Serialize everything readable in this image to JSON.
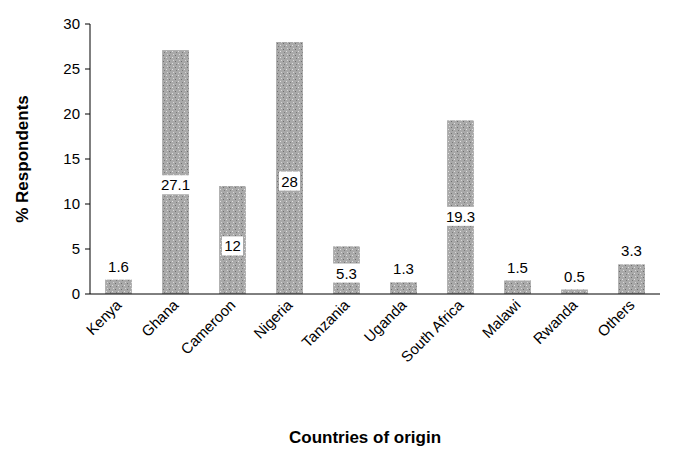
{
  "chart_data": {
    "type": "bar",
    "x_label": "Countries of origin",
    "y_label": "% Respondents",
    "categories": [
      "Kenya",
      "Ghana",
      "Cameroon",
      "Nigeria",
      "Tanzania",
      "Uganda",
      "South Africa",
      "Malawi",
      "Rwanda",
      "Others"
    ],
    "values": [
      1.6,
      27.1,
      12,
      28,
      5.3,
      1.3,
      19.3,
      1.5,
      0.5,
      3.3
    ],
    "color": "#a9a9a9",
    "ylim": [
      0,
      30
    ],
    "yticks": [
      0,
      5,
      10,
      15,
      20,
      25,
      30
    ],
    "grid": false,
    "data_labels": true
  }
}
